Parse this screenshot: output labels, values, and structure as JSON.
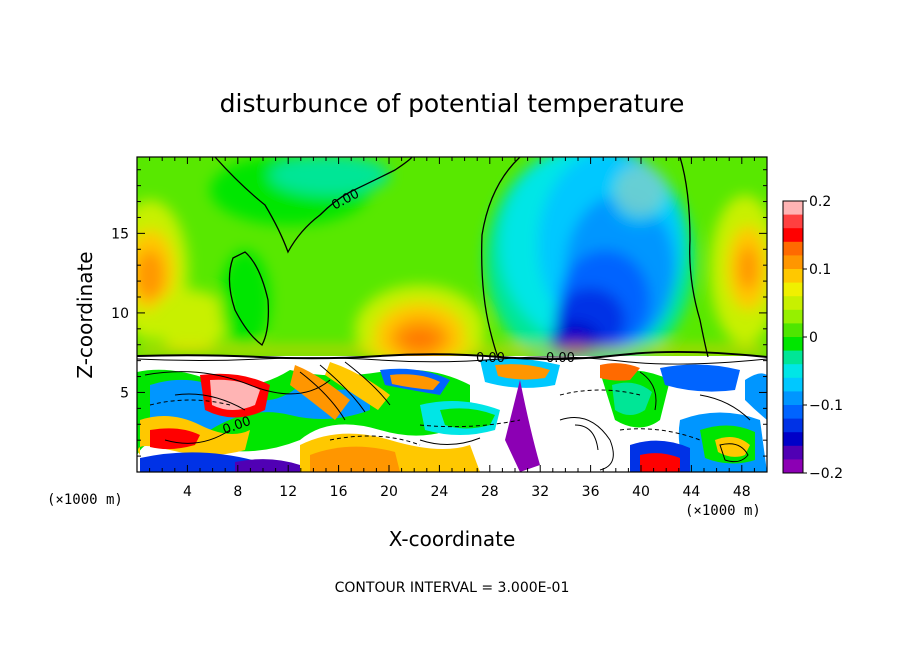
{
  "chart_data": {
    "type": "heatmap",
    "title": "disturbunce of potential temperature",
    "xlabel": "X-coordinate",
    "ylabel": "Z-coordinate",
    "x_unit": "(×1000 m)",
    "x_unit_right": "(×1000 m)",
    "xlim": [
      0,
      50
    ],
    "ylim": [
      0,
      19.8
    ],
    "x_ticks": [
      4,
      8,
      12,
      16,
      20,
      24,
      28,
      32,
      36,
      40,
      44,
      48
    ],
    "y_ticks": [
      5,
      10,
      15
    ],
    "colorbar": {
      "min": -0.2,
      "max": 0.2,
      "ticks": [
        0.2,
        0.1,
        0,
        -0.1,
        -0.2
      ],
      "tick_labels": [
        "0.2",
        "0.1",
        "0",
        "−0.1",
        "−0.2"
      ],
      "colors": [
        "#ffb4b4",
        "#ff4040",
        "#ff0000",
        "#ff6a00",
        "#ff9600",
        "#ffc800",
        "#f0f000",
        "#c8f000",
        "#96f000",
        "#4ee600",
        "#00e600",
        "#00e696",
        "#00e6e6",
        "#00c8ff",
        "#0096ff",
        "#0064ff",
        "#0032e6",
        "#0000c8",
        "#5000b4",
        "#8c00b4"
      ]
    },
    "contour_labels": [
      "0.00",
      "0.00",
      "0.00",
      "0.00"
    ],
    "contour_interval_text": "CONTOUR INTERVAL = 3.000E-01"
  }
}
